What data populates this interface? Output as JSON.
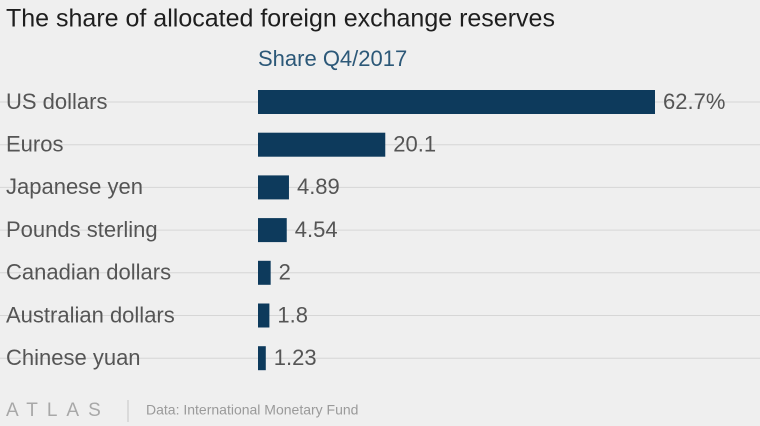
{
  "chart_data": {
    "type": "barh",
    "title": "The share of allocated foreign exchange reserves",
    "subtitle": "Share Q4/2017",
    "categories": [
      "US dollars",
      "Euros",
      "Japanese yen",
      "Pounds sterling",
      "Canadian dollars",
      "Australian dollars",
      "Chinese yuan"
    ],
    "values": [
      62.7,
      20.1,
      4.89,
      4.54,
      2,
      1.8,
      1.23
    ],
    "value_labels": [
      "62.7%",
      "20.1",
      "4.89",
      "4.54",
      "2",
      "1.8",
      "1.23"
    ],
    "color": "#0d3a5c",
    "logo": "ATLAS",
    "source": "Data: International Monetary Fund"
  }
}
